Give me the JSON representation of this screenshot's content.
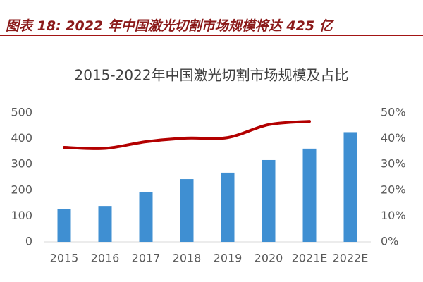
{
  "header": {
    "title": "图表 18: 2022 年中国激光切割市场规模将达 425 亿"
  },
  "chart_data": {
    "type": "combo",
    "title": "2015-2022年中国激光切割市场规模及占比",
    "categories": [
      "2015",
      "2016",
      "2017",
      "2018",
      "2019",
      "2020",
      "2021E",
      "2022E"
    ],
    "series": [
      {
        "type": "bar",
        "color": "#3f8fd2",
        "values": [
          126,
          139,
          194,
          243,
          268,
          317,
          361,
          425
        ]
      },
      {
        "type": "line",
        "axis": "y2",
        "color": "#b30000",
        "values": [
          36.6,
          36.2,
          38.8,
          40.2,
          40.4,
          45.4,
          46.7,
          null
        ]
      }
    ],
    "ylim": [
      0,
      500
    ],
    "yticks": [
      0,
      100,
      200,
      300,
      400,
      500
    ],
    "y2lim": [
      0,
      50
    ],
    "y2ticks": [
      {
        "value": 0,
        "label": "0%"
      },
      {
        "value": 10,
        "label": "10%"
      },
      {
        "value": 20,
        "label": "20%"
      },
      {
        "value": 30,
        "label": "30%"
      },
      {
        "value": 40,
        "label": "40%"
      },
      {
        "value": 50,
        "label": "50%"
      }
    ]
  }
}
